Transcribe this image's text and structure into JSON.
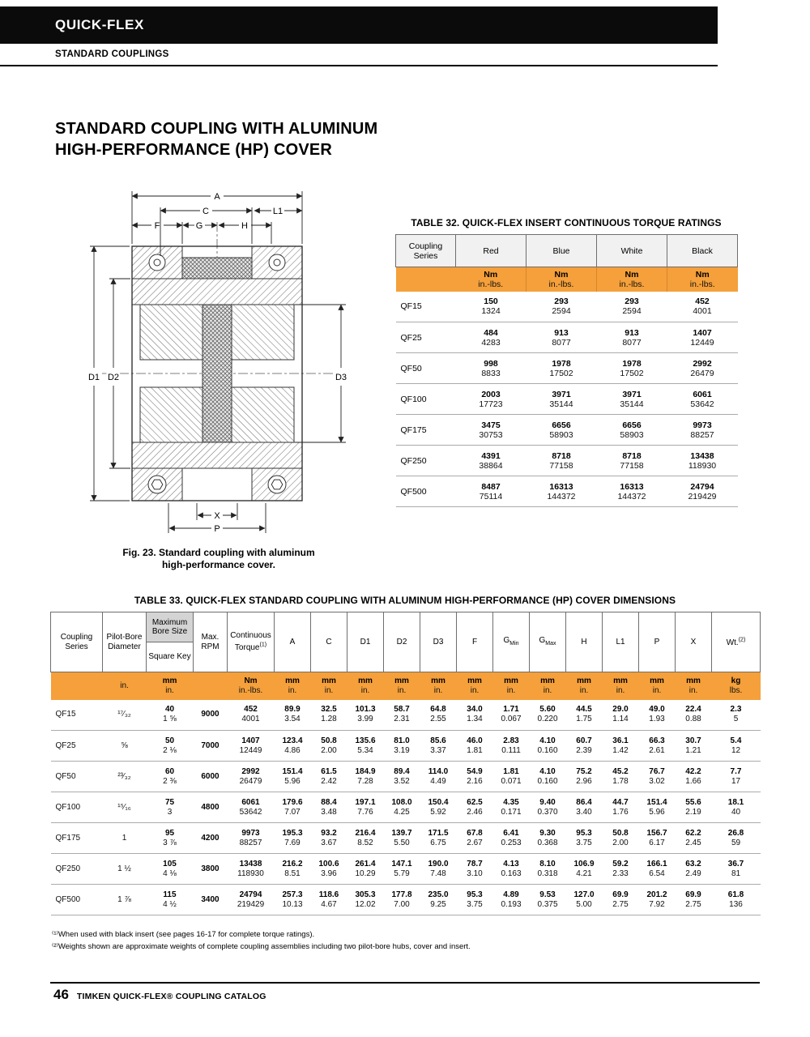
{
  "header": {
    "brand": "QUICK-FLEX",
    "section": "STANDARD COUPLINGS"
  },
  "title": {
    "line1": "STANDARD COUPLING WITH ALUMINUM",
    "line2": "HIGH-PERFORMANCE (HP) COVER"
  },
  "figure": {
    "caption_line1": "Fig. 23. Standard coupling with aluminum",
    "caption_line2": "high-performance cover.",
    "labels": {
      "a": "A",
      "c": "C",
      "l1": "L1",
      "f": "F",
      "g": "G",
      "h": "H",
      "d1": "D1",
      "d2": "D2",
      "d3": "D3",
      "x": "X",
      "p": "P"
    }
  },
  "table32": {
    "title": "TABLE 32. QUICK-FLEX INSERT CONTINUOUS TORQUE RATINGS",
    "columns": [
      "Coupling Series",
      "Red",
      "Blue",
      "White",
      "Black"
    ],
    "unit_metric": "Nm",
    "unit_imperial": "in.-lbs.",
    "rows": [
      {
        "series": "QF15",
        "values": [
          [
            "150",
            "1324"
          ],
          [
            "293",
            "2594"
          ],
          [
            "293",
            "2594"
          ],
          [
            "452",
            "4001"
          ]
        ]
      },
      {
        "series": "QF25",
        "values": [
          [
            "484",
            "4283"
          ],
          [
            "913",
            "8077"
          ],
          [
            "913",
            "8077"
          ],
          [
            "1407",
            "12449"
          ]
        ]
      },
      {
        "series": "QF50",
        "values": [
          [
            "998",
            "8833"
          ],
          [
            "1978",
            "17502"
          ],
          [
            "1978",
            "17502"
          ],
          [
            "2992",
            "26479"
          ]
        ]
      },
      {
        "series": "QF100",
        "values": [
          [
            "2003",
            "17723"
          ],
          [
            "3971",
            "35144"
          ],
          [
            "3971",
            "35144"
          ],
          [
            "6061",
            "53642"
          ]
        ]
      },
      {
        "series": "QF175",
        "values": [
          [
            "3475",
            "30753"
          ],
          [
            "6656",
            "58903"
          ],
          [
            "6656",
            "58903"
          ],
          [
            "9973",
            "88257"
          ]
        ]
      },
      {
        "series": "QF250",
        "values": [
          [
            "4391",
            "38864"
          ],
          [
            "8718",
            "77158"
          ],
          [
            "8718",
            "77158"
          ],
          [
            "13438",
            "118930"
          ]
        ]
      },
      {
        "series": "QF500",
        "values": [
          [
            "8487",
            "75114"
          ],
          [
            "16313",
            "144372"
          ],
          [
            "16313",
            "144372"
          ],
          [
            "24794",
            "219429"
          ]
        ]
      }
    ]
  },
  "table33": {
    "title": "TABLE 33. QUICK-FLEX STANDARD COUPLING WITH ALUMINUM HIGH-PERFORMANCE (HP) COVER DIMENSIONS",
    "columns": [
      {
        "id": "series",
        "label": "Coupling Series",
        "units": []
      },
      {
        "id": "pilot-bore",
        "label": "Pilot-Bore Diameter",
        "units": [
          "in."
        ]
      },
      {
        "id": "max-bore",
        "label": "Maximum Bore Size",
        "label2": "Square Key",
        "units": [
          "mm",
          "in."
        ]
      },
      {
        "id": "rpm",
        "label": "Max. RPM",
        "units": []
      },
      {
        "id": "torque",
        "label": "Continuous Torque",
        "sup": "(1)",
        "units": [
          "Nm",
          "in.-lbs."
        ]
      },
      {
        "id": "dim-a",
        "label": "A",
        "units": [
          "mm",
          "in."
        ]
      },
      {
        "id": "dim-c",
        "label": "C",
        "units": [
          "mm",
          "in."
        ]
      },
      {
        "id": "dim-d1",
        "label": "D1",
        "units": [
          "mm",
          "in."
        ]
      },
      {
        "id": "dim-d2",
        "label": "D2",
        "units": [
          "mm",
          "in."
        ]
      },
      {
        "id": "dim-d3",
        "label": "D3",
        "units": [
          "mm",
          "in."
        ]
      },
      {
        "id": "dim-f",
        "label": "F",
        "units": [
          "mm",
          "in."
        ]
      },
      {
        "id": "dim-gmin",
        "label": "G",
        "sub": "Min",
        "units": [
          "mm",
          "in."
        ]
      },
      {
        "id": "dim-gmax",
        "label": "G",
        "sub": "Max",
        "units": [
          "mm",
          "in."
        ]
      },
      {
        "id": "dim-h",
        "label": "H",
        "units": [
          "mm",
          "in."
        ]
      },
      {
        "id": "dim-l1",
        "label": "L1",
        "units": [
          "mm",
          "in."
        ]
      },
      {
        "id": "dim-p",
        "label": "P",
        "units": [
          "mm",
          "in."
        ]
      },
      {
        "id": "dim-x",
        "label": "X",
        "units": [
          "mm",
          "in."
        ]
      },
      {
        "id": "wt",
        "label": "Wt.",
        "sup": "(2)",
        "units": [
          "kg",
          "lbs."
        ]
      }
    ],
    "rows": [
      {
        "series": "QF15",
        "pilot": "¹⁷⁄₃₂",
        "bore": [
          "40",
          "1 ⅝"
        ],
        "rpm": "9000",
        "torque": [
          "452",
          "4001"
        ],
        "dims": [
          [
            "89.9",
            "3.54"
          ],
          [
            "32.5",
            "1.28"
          ],
          [
            "101.3",
            "3.99"
          ],
          [
            "58.7",
            "2.31"
          ],
          [
            "64.8",
            "2.55"
          ],
          [
            "34.0",
            "1.34"
          ],
          [
            "1.71",
            "0.067"
          ],
          [
            "5.60",
            "0.220"
          ],
          [
            "44.5",
            "1.75"
          ],
          [
            "29.0",
            "1.14"
          ],
          [
            "49.0",
            "1.93"
          ],
          [
            "22.4",
            "0.88"
          ]
        ],
        "wt": [
          "2.3",
          "5"
        ]
      },
      {
        "series": "QF25",
        "pilot": "⅝",
        "bore": [
          "50",
          "2 ⅛"
        ],
        "rpm": "7000",
        "torque": [
          "1407",
          "12449"
        ],
        "dims": [
          [
            "123.4",
            "4.86"
          ],
          [
            "50.8",
            "2.00"
          ],
          [
            "135.6",
            "5.34"
          ],
          [
            "81.0",
            "3.19"
          ],
          [
            "85.6",
            "3.37"
          ],
          [
            "46.0",
            "1.81"
          ],
          [
            "2.83",
            "0.111"
          ],
          [
            "4.10",
            "0.160"
          ],
          [
            "60.7",
            "2.39"
          ],
          [
            "36.1",
            "1.42"
          ],
          [
            "66.3",
            "2.61"
          ],
          [
            "30.7",
            "1.21"
          ]
        ],
        "wt": [
          "5.4",
          "12"
        ]
      },
      {
        "series": "QF50",
        "pilot": "²³⁄₃₂",
        "bore": [
          "60",
          "2 ⅜"
        ],
        "rpm": "6000",
        "torque": [
          "2992",
          "26479"
        ],
        "dims": [
          [
            "151.4",
            "5.96"
          ],
          [
            "61.5",
            "2.42"
          ],
          [
            "184.9",
            "7.28"
          ],
          [
            "89.4",
            "3.52"
          ],
          [
            "114.0",
            "4.49"
          ],
          [
            "54.9",
            "2.16"
          ],
          [
            "1.81",
            "0.071"
          ],
          [
            "4.10",
            "0.160"
          ],
          [
            "75.2",
            "2.96"
          ],
          [
            "45.2",
            "1.78"
          ],
          [
            "76.7",
            "3.02"
          ],
          [
            "42.2",
            "1.66"
          ]
        ],
        "wt": [
          "7.7",
          "17"
        ]
      },
      {
        "series": "QF100",
        "pilot": "¹⁵⁄₁₆",
        "bore": [
          "75",
          "3"
        ],
        "rpm": "4800",
        "torque": [
          "6061",
          "53642"
        ],
        "dims": [
          [
            "179.6",
            "7.07"
          ],
          [
            "88.4",
            "3.48"
          ],
          [
            "197.1",
            "7.76"
          ],
          [
            "108.0",
            "4.25"
          ],
          [
            "150.4",
            "5.92"
          ],
          [
            "62.5",
            "2.46"
          ],
          [
            "4.35",
            "0.171"
          ],
          [
            "9.40",
            "0.370"
          ],
          [
            "86.4",
            "3.40"
          ],
          [
            "44.7",
            "1.76"
          ],
          [
            "151.4",
            "5.96"
          ],
          [
            "55.6",
            "2.19"
          ]
        ],
        "wt": [
          "18.1",
          "40"
        ]
      },
      {
        "series": "QF175",
        "pilot": "1",
        "bore": [
          "95",
          "3 ⅞"
        ],
        "rpm": "4200",
        "torque": [
          "9973",
          "88257"
        ],
        "dims": [
          [
            "195.3",
            "7.69"
          ],
          [
            "93.2",
            "3.67"
          ],
          [
            "216.4",
            "8.52"
          ],
          [
            "139.7",
            "5.50"
          ],
          [
            "171.5",
            "6.75"
          ],
          [
            "67.8",
            "2.67"
          ],
          [
            "6.41",
            "0.253"
          ],
          [
            "9.30",
            "0.368"
          ],
          [
            "95.3",
            "3.75"
          ],
          [
            "50.8",
            "2.00"
          ],
          [
            "156.7",
            "6.17"
          ],
          [
            "62.2",
            "2.45"
          ]
        ],
        "wt": [
          "26.8",
          "59"
        ]
      },
      {
        "series": "QF250",
        "pilot": "1 ½",
        "bore": [
          "105",
          "4 ⅛"
        ],
        "rpm": "3800",
        "torque": [
          "13438",
          "118930"
        ],
        "dims": [
          [
            "216.2",
            "8.51"
          ],
          [
            "100.6",
            "3.96"
          ],
          [
            "261.4",
            "10.29"
          ],
          [
            "147.1",
            "5.79"
          ],
          [
            "190.0",
            "7.48"
          ],
          [
            "78.7",
            "3.10"
          ],
          [
            "4.13",
            "0.163"
          ],
          [
            "8.10",
            "0.318"
          ],
          [
            "106.9",
            "4.21"
          ],
          [
            "59.2",
            "2.33"
          ],
          [
            "166.1",
            "6.54"
          ],
          [
            "63.2",
            "2.49"
          ]
        ],
        "wt": [
          "36.7",
          "81"
        ]
      },
      {
        "series": "QF500",
        "pilot": "1 ⅞",
        "bore": [
          "115",
          "4 ½"
        ],
        "rpm": "3400",
        "torque": [
          "24794",
          "219429"
        ],
        "dims": [
          [
            "257.3",
            "10.13"
          ],
          [
            "118.6",
            "4.67"
          ],
          [
            "305.3",
            "12.02"
          ],
          [
            "177.8",
            "7.00"
          ],
          [
            "235.0",
            "9.25"
          ],
          [
            "95.3",
            "3.75"
          ],
          [
            "4.89",
            "0.193"
          ],
          [
            "9.53",
            "0.375"
          ],
          [
            "127.0",
            "5.00"
          ],
          [
            "69.9",
            "2.75"
          ],
          [
            "201.2",
            "7.92"
          ],
          [
            "69.9",
            "2.75"
          ]
        ],
        "wt": [
          "61.8",
          "136"
        ]
      }
    ]
  },
  "footnotes": [
    "⁽¹⁾When used with black insert (see pages 16-17 for complete torque ratings).",
    "⁽²⁾Weights shown are approximate weights of complete coupling assemblies including two pilot-bore hubs, cover and insert."
  ],
  "footer": {
    "page_number": "46",
    "text": "TIMKEN QUICK-FLEX® COUPLING CATALOG"
  },
  "colors": {
    "accent_orange": "#F5A03B",
    "bar_black": "#0B0B0B"
  }
}
